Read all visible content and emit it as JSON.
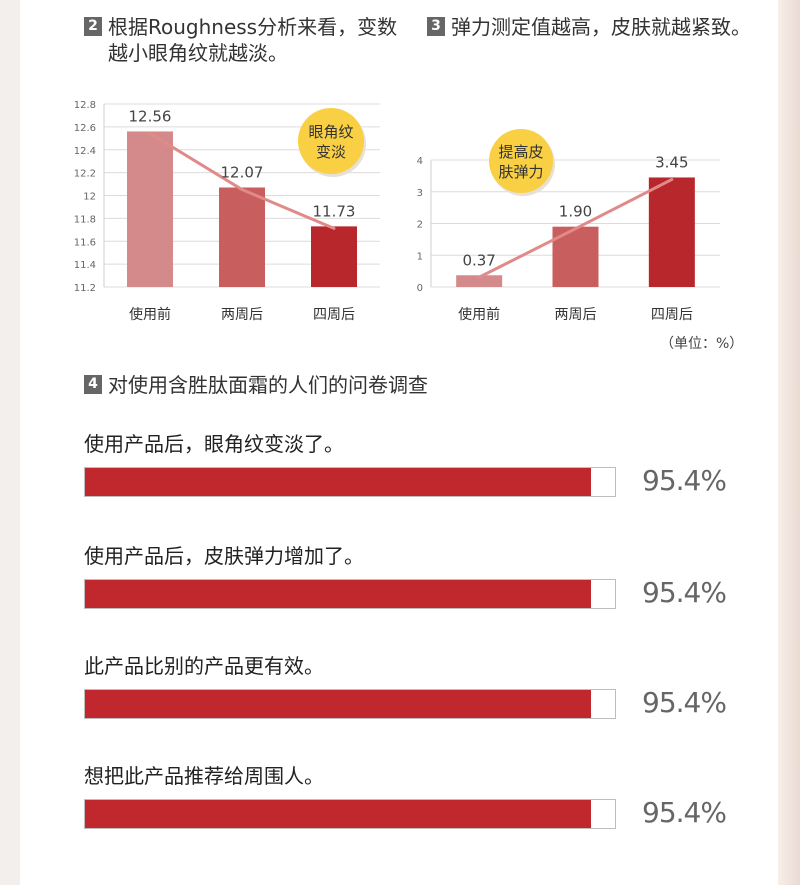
{
  "section2": {
    "number": "2",
    "title": "根据Roughness分析来看，变数\n越小眼角纹就越淡。"
  },
  "section3": {
    "number": "3",
    "title": "弹力测定值越高，皮肤就越紧致。"
  },
  "section4": {
    "number": "4",
    "title": "对使用含胜肽面霜的人们的问卷调查"
  },
  "colors": {
    "bar_light": "#d48a8a",
    "bar_mid": "#c95e5e",
    "bar_dark": "#b8272c",
    "trend_line": "#e08a8a",
    "badge": "#f9cf44",
    "survey_fill": "#c0282e"
  },
  "unit_label": "（单位：%）",
  "chart_data": [
    {
      "type": "bar",
      "categories": [
        "使用前",
        "两周后",
        "四周后"
      ],
      "values": [
        12.56,
        12.07,
        11.73
      ],
      "data_labels": [
        "12.56",
        "12.07",
        "11.73"
      ],
      "ylim": [
        11.2,
        12.8
      ],
      "yticks": [
        "11.2",
        "11.4",
        "11.6",
        "11.8",
        "12",
        "12.2",
        "12.4",
        "12.6",
        "12.8"
      ],
      "grid": true,
      "trend_line": true,
      "badge": "眼角纹\n变淡"
    },
    {
      "type": "bar",
      "categories": [
        "使用前",
        "两周后",
        "四周后"
      ],
      "values": [
        0.37,
        1.9,
        3.45
      ],
      "data_labels": [
        "0.37",
        "1.90",
        "3.45"
      ],
      "ylim": [
        0,
        4
      ],
      "yticks": [
        "0",
        "1",
        "2",
        "3",
        "4"
      ],
      "grid": true,
      "trend_line": true,
      "badge": "提高皮\n肤弹力"
    },
    {
      "type": "bar",
      "orientation": "horizontal",
      "categories": [
        "使用产品后，眼角纹变淡了。",
        "使用产品后，皮肤弹力增加了。",
        "此产品比别的产品更有效。",
        "想把此产品推荐给周围人。"
      ],
      "values": [
        95.4,
        95.4,
        95.4,
        95.4
      ],
      "data_labels": [
        "95.4%",
        "95.4%",
        "95.4%",
        "95.4%"
      ],
      "xlim": [
        0,
        100
      ]
    }
  ]
}
